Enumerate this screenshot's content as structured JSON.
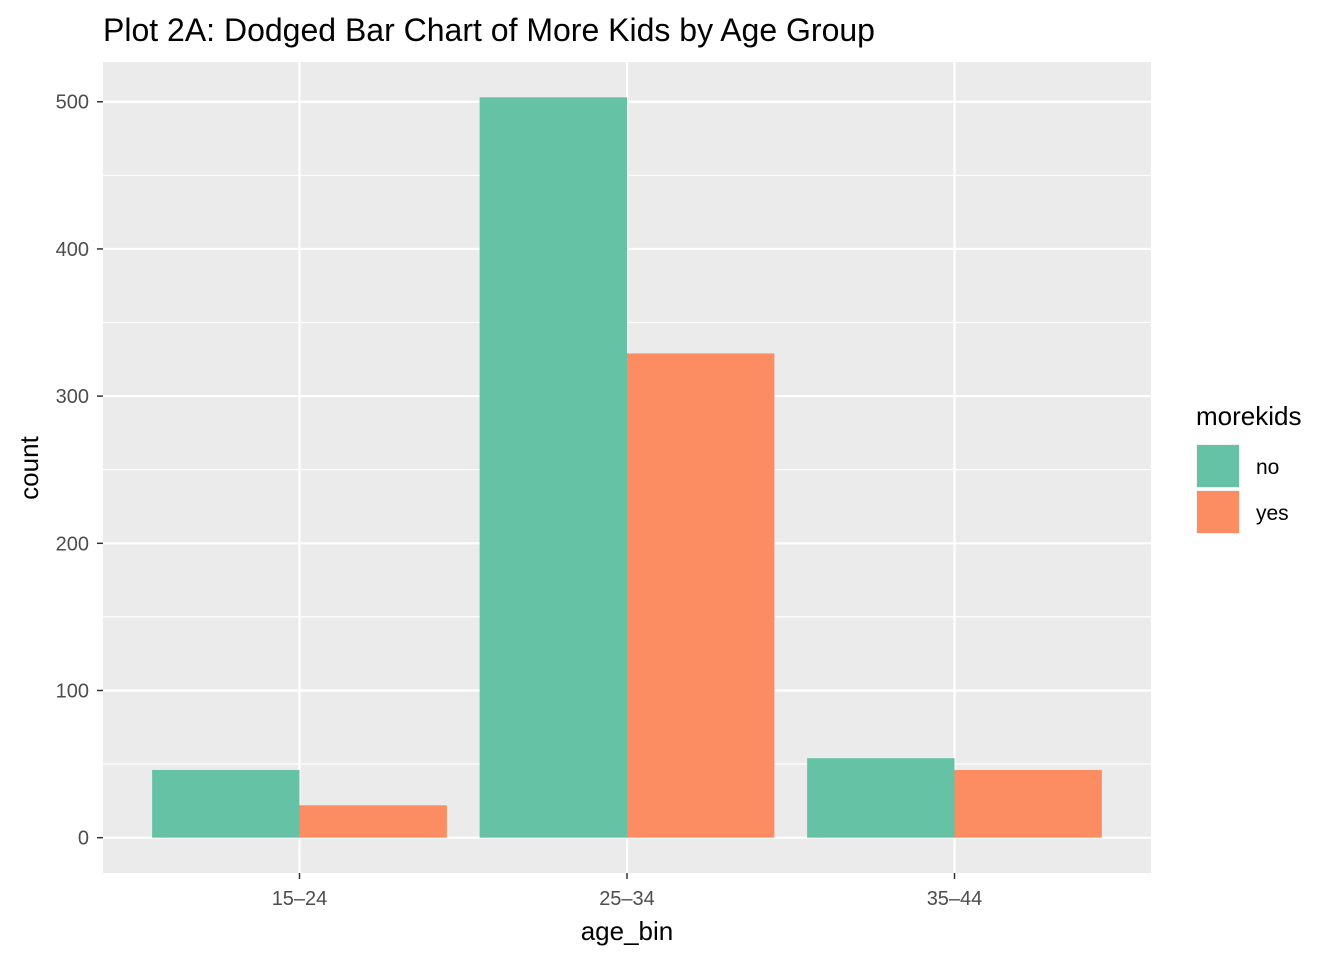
{
  "chart_data": {
    "type": "bar",
    "title": "Plot 2A: Dodged Bar Chart of More Kids by Age Group",
    "xlabel": "age_bin",
    "ylabel": "count",
    "categories": [
      "15–24",
      "25–34",
      "35–44"
    ],
    "series": [
      {
        "name": "no",
        "values": [
          46,
          503,
          54
        ],
        "color": "#66C2A5"
      },
      {
        "name": "yes",
        "values": [
          22,
          329,
          46
        ],
        "color": "#FC8D62"
      }
    ],
    "ylim": [
      -24,
      527
    ],
    "yticks": [
      0,
      100,
      200,
      300,
      400,
      500
    ],
    "grid": true,
    "legend_title": "morekids",
    "legend_position": "right",
    "panel_background": "#EBEBEB"
  }
}
